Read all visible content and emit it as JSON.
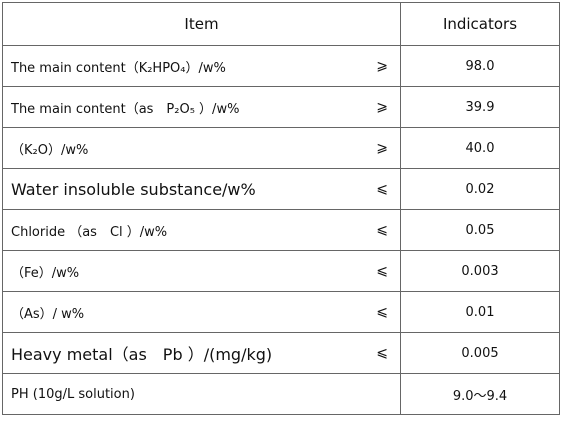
{
  "header": {
    "item": "Item",
    "indicators": "Indicators"
  },
  "rows": [
    {
      "item": "The main content（K₂HPO₄）/w%",
      "sign": "⩾",
      "value": "98.0"
    },
    {
      "item": "The main content（as　P₂O₅ ）/w%",
      "sign": "⩾",
      "value": "39.9"
    },
    {
      "item": "（K₂O）/w%",
      "sign": "⩾",
      "value": "40.0"
    },
    {
      "item": "Water insoluble substance/w%",
      "sign": "⩽",
      "value": "0.02"
    },
    {
      "item": "Chloride （as　Cl ）/w%",
      "sign": "⩽",
      "value": "0.05"
    },
    {
      "item": "（Fe）/w%",
      "sign": "⩽",
      "value": "0.003"
    },
    {
      "item": "（As）/ w%",
      "sign": "⩽",
      "value": "0.01"
    },
    {
      "item": "Heavy metal（as　Pb ）/(mg/kg)",
      "sign": "⩽",
      "value": "0.005"
    },
    {
      "item": "PH (10g/L solution)",
      "value": "9.0～9.4"
    }
  ]
}
